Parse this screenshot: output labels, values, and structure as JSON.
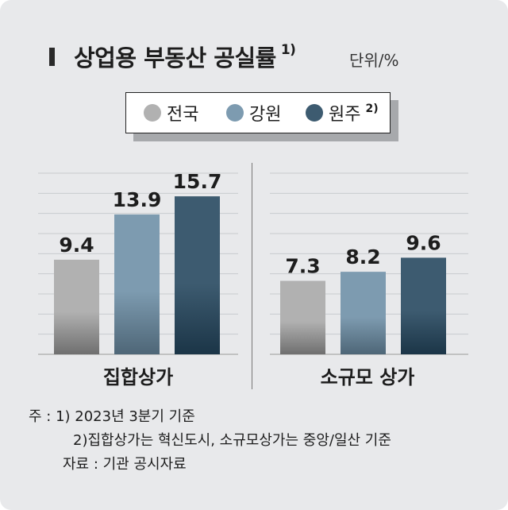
{
  "header": {
    "title": "상업용 부동산 공실률",
    "title_note": "1)",
    "unit": "단위/%"
  },
  "legend": {
    "items": [
      {
        "label": "전국",
        "color": "#b1b1b1",
        "note": ""
      },
      {
        "label": "강원",
        "color": "#7d9bb0",
        "note": ""
      },
      {
        "label": "원주",
        "color": "#3d5b70",
        "note": "2)"
      }
    ]
  },
  "chart_data": {
    "type": "bar",
    "title": "상업용 부동산 공실률",
    "ylabel": "단위/%",
    "ylim": [
      0,
      18
    ],
    "categories": [
      "집합상가",
      "소규모 상가"
    ],
    "series": [
      {
        "name": "전국",
        "values": [
          9.4,
          7.3
        ]
      },
      {
        "name": "강원",
        "values": [
          13.9,
          8.2
        ]
      },
      {
        "name": "원주",
        "values": [
          15.7,
          9.6
        ]
      }
    ],
    "value_labels": [
      [
        "9.4",
        "13.9",
        "15.7"
      ],
      [
        "7.3",
        "8.2",
        "9.6"
      ]
    ],
    "gridlines": true,
    "legend_position": "top-center"
  },
  "notes": {
    "line1": "주 : 1) 2023년 3분기 기준",
    "line2": "2)집합상가는 혁신도시, 소규모상가는 중앙/일산 기준",
    "source": "자료 : 기관 공시자료"
  }
}
